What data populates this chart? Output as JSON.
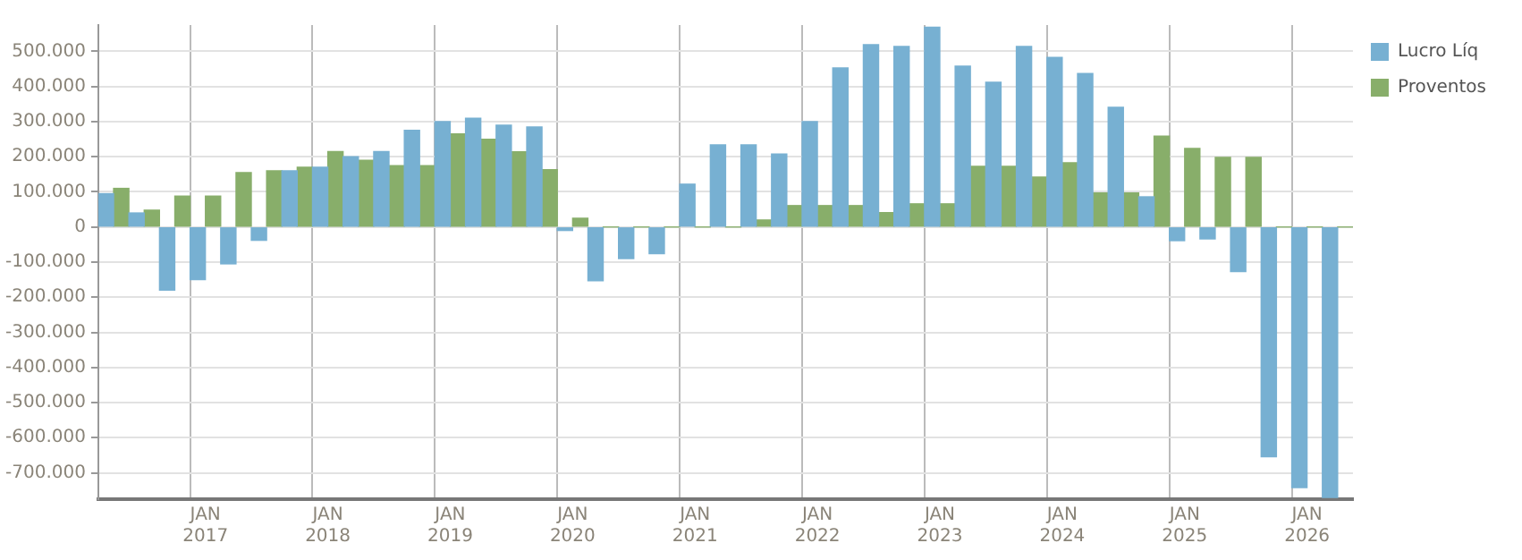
{
  "chart_data": {
    "type": "bar",
    "categories": [
      null,
      null,
      null,
      "JAN 2017",
      null,
      null,
      null,
      "JAN 2018",
      null,
      null,
      null,
      "JAN 2019",
      null,
      null,
      null,
      "JAN 2020",
      null,
      null,
      null,
      "JAN 2021",
      null,
      null,
      null,
      "JAN 2022",
      null,
      null,
      null,
      "JAN 2023",
      null,
      null,
      null,
      "JAN 2024",
      null,
      null,
      null,
      "JAN 2025",
      null,
      null,
      null,
      "JAN 2026",
      null
    ],
    "series": [
      {
        "name": "Lucro Líq",
        "color": "#77b0d2",
        "values": [
          95000,
          40000,
          -180000,
          -150000,
          -105000,
          -38000,
          160000,
          170000,
          200000,
          215000,
          275000,
          300000,
          310000,
          290000,
          285000,
          -10000,
          -153000,
          -90000,
          -76000,
          122000,
          234000,
          234000,
          208000,
          300000,
          453000,
          519000,
          514000,
          569000,
          458000,
          412000,
          514000,
          483000,
          437000,
          341000,
          86000,
          -39000,
          -34000,
          -127000,
          -654000,
          -742000,
          -770000
        ]
      },
      {
        "name": "Proventos",
        "color": "#88ae6a",
        "values": [
          110000,
          48000,
          88000,
          88000,
          155000,
          160000,
          170000,
          215000,
          190000,
          175000,
          175000,
          265000,
          250000,
          214000,
          163000,
          25000,
          0,
          0,
          0,
          0,
          0,
          20000,
          61000,
          61000,
          61000,
          41000,
          66000,
          66000,
          173000,
          173000,
          142000,
          183000,
          97000,
          97000,
          259000,
          224000,
          198000,
          198000,
          0,
          0,
          0
        ]
      }
    ],
    "ylim": [
      -775000,
      575000
    ],
    "yticks": [
      {
        "value": -700000,
        "label": "-700.000"
      },
      {
        "value": -600000,
        "label": "-600.000"
      },
      {
        "value": -500000,
        "label": "-500.000"
      },
      {
        "value": -400000,
        "label": "-400.000"
      },
      {
        "value": -300000,
        "label": "-300.000"
      },
      {
        "value": -200000,
        "label": "-200.000"
      },
      {
        "value": -100000,
        "label": "-100.000"
      },
      0,
      {
        "value": 100000,
        "label": "100.000"
      },
      {
        "value": 200000,
        "label": "200.000"
      },
      {
        "value": 300000,
        "label": "300.000"
      },
      {
        "value": 400000,
        "label": "400.000"
      },
      {
        "value": 500000,
        "label": "500.000"
      }
    ],
    "grid": true,
    "legend": "top right"
  }
}
